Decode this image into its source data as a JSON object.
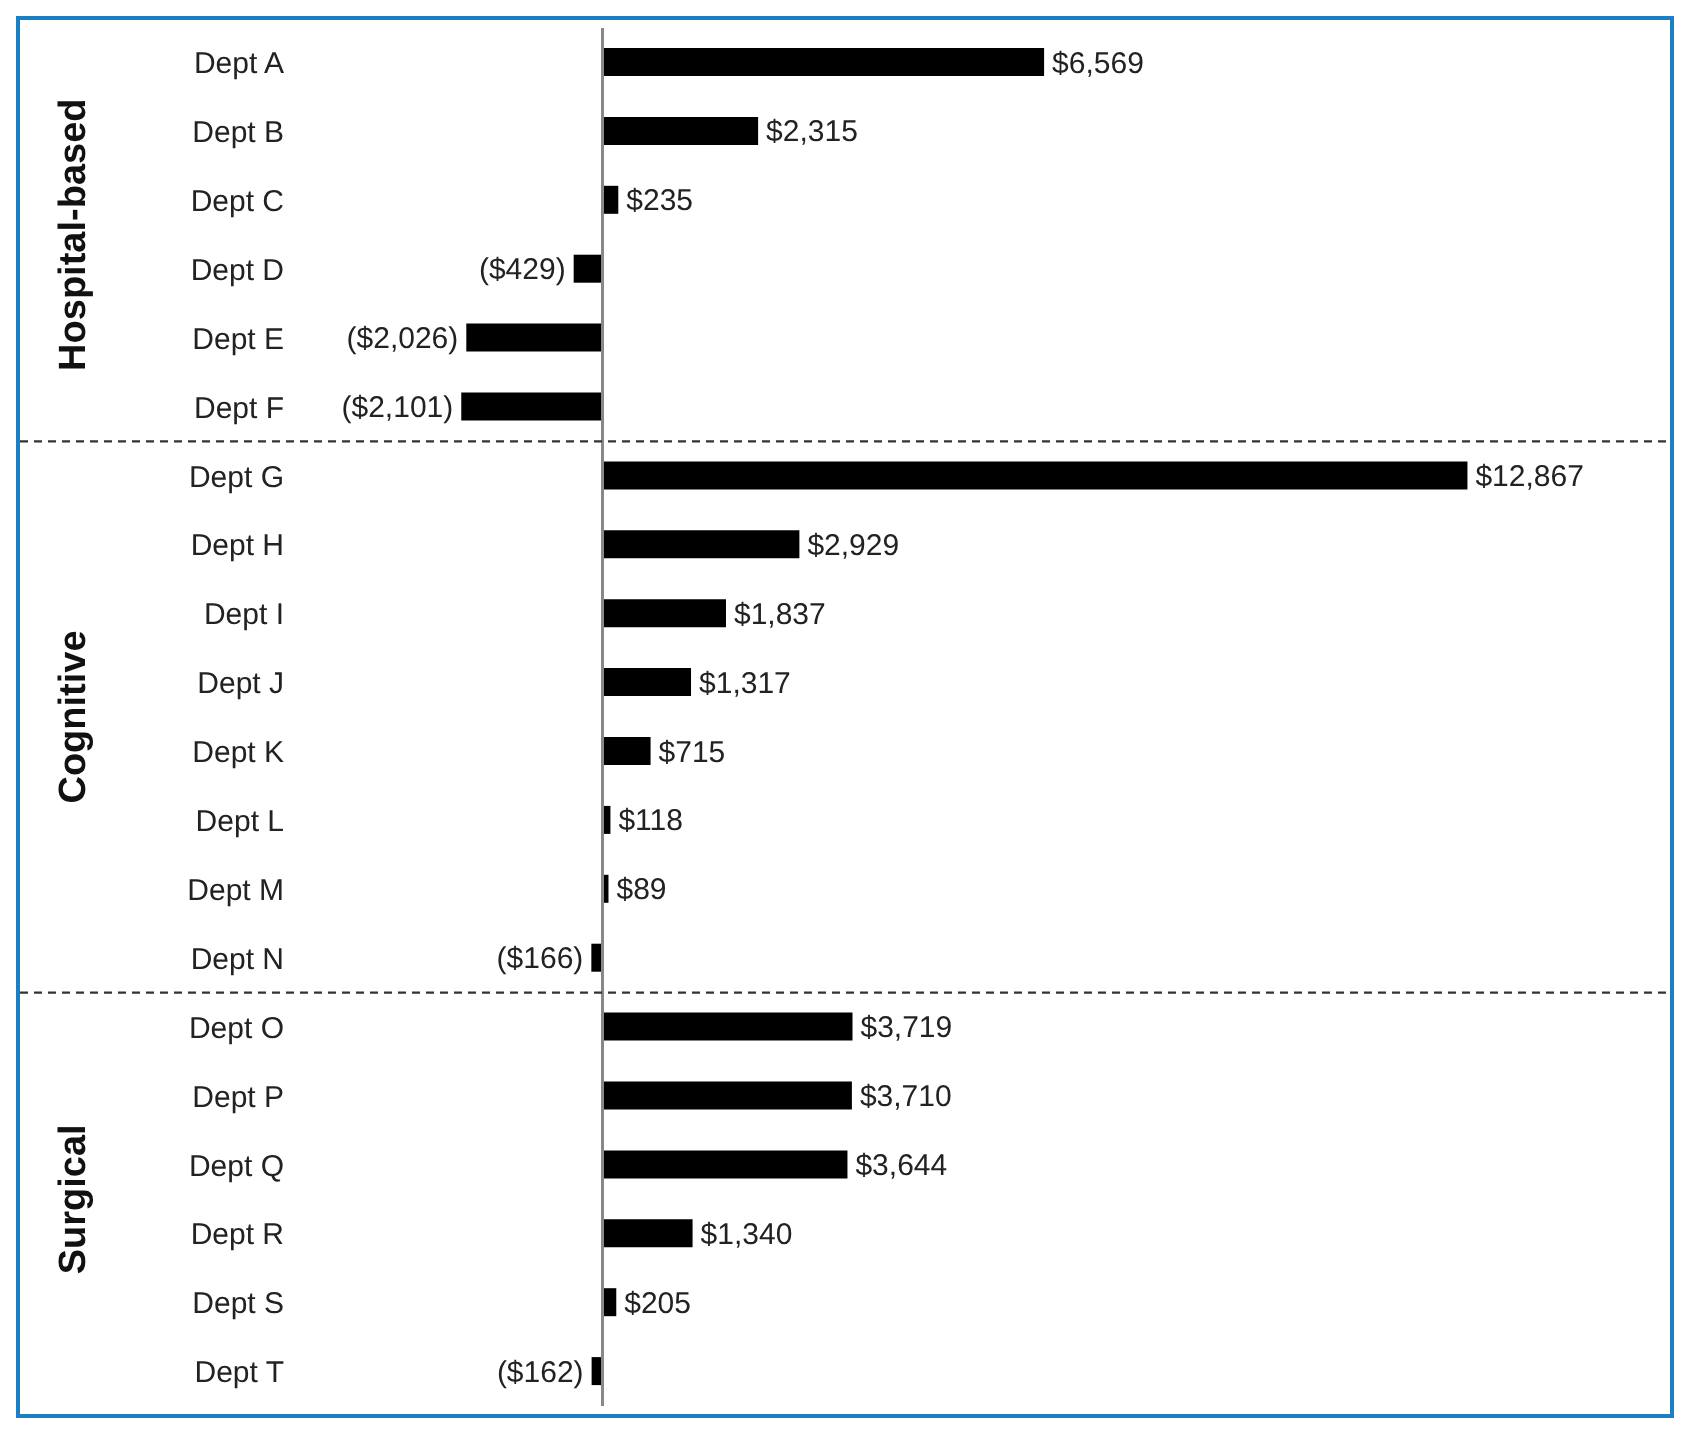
{
  "chart_data": {
    "type": "bar",
    "orientation": "horizontal",
    "categories": [
      "Dept A",
      "Dept B",
      "Dept C",
      "Dept D",
      "Dept E",
      "Dept F",
      "Dept G",
      "Dept H",
      "Dept I",
      "Dept J",
      "Dept K",
      "Dept L",
      "Dept M",
      "Dept N",
      "Dept O",
      "Dept P",
      "Dept Q",
      "Dept R",
      "Dept S",
      "Dept T"
    ],
    "values": [
      6569,
      2315,
      235,
      -429,
      -2026,
      -2101,
      12867,
      2929,
      1837,
      1317,
      715,
      118,
      89,
      -166,
      3719,
      3710,
      3644,
      1340,
      205,
      -162
    ],
    "value_labels": [
      "$6,569",
      "$2,315",
      "$235",
      "($429)",
      "($2,026)",
      "($2,101)",
      "$12,867",
      "$2,929",
      "$1,837",
      "$1,317",
      "$715",
      "$118",
      "$89",
      "($166)",
      "$3,719",
      "$3,710",
      "$3,644",
      "$1,340",
      "$205",
      "($162)"
    ],
    "color": "#000000",
    "annotations": [
      "Hospital-based",
      "Cognitive",
      "Surgical"
    ],
    "grid": false,
    "legend": false
  }
}
